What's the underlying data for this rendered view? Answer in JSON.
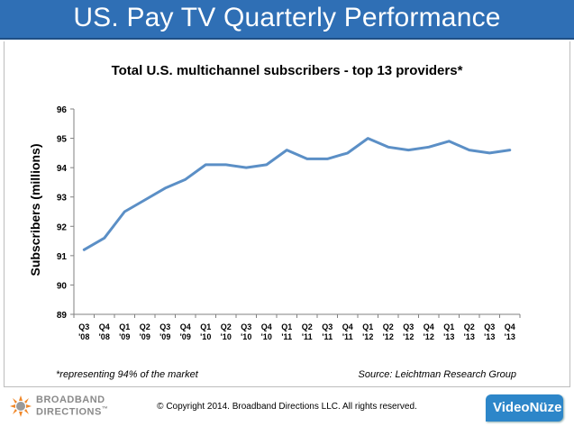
{
  "banner": {
    "title": "US. Pay TV Quarterly Performance"
  },
  "footer": {
    "footnote": "*representing 94% of the market",
    "source": "Source: Leichtman Research Group",
    "copyright": "© Copyright 2014. Broadband Directions LLC.  All rights reserved.",
    "logo_left_line1": "BROADBAND",
    "logo_left_line2": "DIRECTIONS",
    "logo_left_tm": "™",
    "logo_right": "VideoNüze"
  },
  "colors": {
    "banner": "#2f6fb5",
    "line": "#5b8fc6",
    "axis": "#808080",
    "logo_orange": "#f0882a",
    "logo_blue": "#2d86c9"
  },
  "chart_data": {
    "type": "line",
    "title": "Total U.S. multichannel subscribers - top 13 providers*",
    "xlabel": "",
    "ylabel": "Subscribers (millions)",
    "ylim": [
      89,
      96
    ],
    "yticks": [
      89,
      90,
      91,
      92,
      93,
      94,
      95,
      96
    ],
    "grid": false,
    "categories": [
      [
        "Q3",
        "'08"
      ],
      [
        "Q4",
        "'08"
      ],
      [
        "Q1",
        "'09"
      ],
      [
        "Q2",
        "'09"
      ],
      [
        "Q3",
        "'09"
      ],
      [
        "Q4",
        "'09"
      ],
      [
        "Q1",
        "'10"
      ],
      [
        "Q2",
        "'10"
      ],
      [
        "Q3",
        "'10"
      ],
      [
        "Q4",
        "'10"
      ],
      [
        "Q1",
        "'11"
      ],
      [
        "Q2",
        "'11"
      ],
      [
        "Q3",
        "'11"
      ],
      [
        "Q4",
        "'11"
      ],
      [
        "Q1",
        "'12"
      ],
      [
        "Q2",
        "'12"
      ],
      [
        "Q3",
        "'12"
      ],
      [
        "Q4",
        "'12"
      ],
      [
        "Q1",
        "'13"
      ],
      [
        "Q2",
        "'13"
      ],
      [
        "Q3",
        "'13"
      ],
      [
        "Q4",
        "'13"
      ]
    ],
    "series": [
      {
        "values": [
          91.2,
          91.6,
          92.5,
          92.9,
          93.3,
          93.6,
          94.1,
          94.1,
          94.0,
          94.1,
          94.6,
          94.3,
          94.3,
          94.5,
          95.0,
          94.7,
          94.6,
          94.7,
          94.9,
          94.6,
          94.5,
          94.6
        ]
      }
    ]
  }
}
